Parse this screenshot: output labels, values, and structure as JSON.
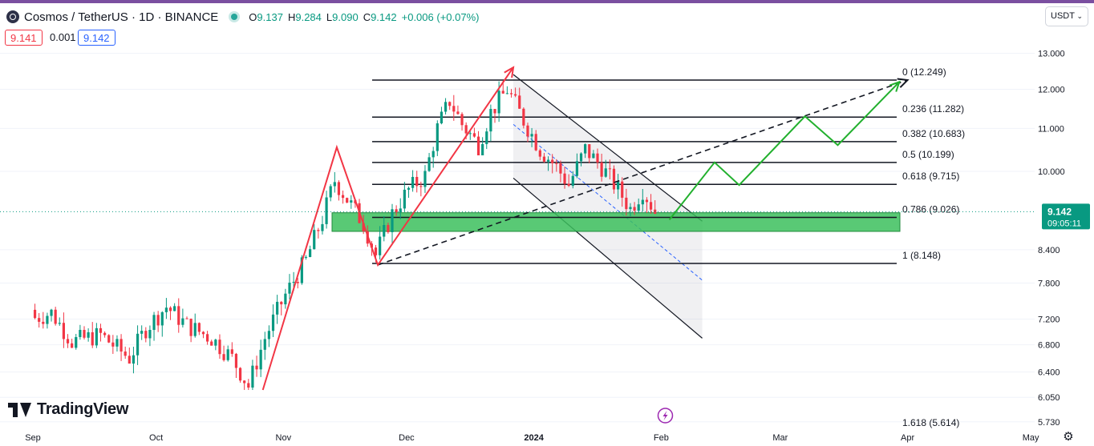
{
  "header": {
    "symbol": "Cosmos / TetherUS · 1D · BINANCE",
    "open_label": "O",
    "open": "9.137",
    "high_label": "H",
    "high": "9.284",
    "low_label": "L",
    "low": "9.090",
    "close_label": "C",
    "close": "9.142",
    "change": "+0.006 (+0.07%)"
  },
  "quote": {
    "bid": "9.141",
    "spread": "0.001",
    "ask": "9.142"
  },
  "currency": "USDT",
  "last_price": {
    "value": "9.142",
    "countdown": "09:05:11"
  },
  "brand": "TradingView",
  "colors": {
    "up": "#089981",
    "down": "#f23645",
    "projection": "#22b02e",
    "zone": "#3cbf5d",
    "accent": "#7b4fa0"
  },
  "icons": {
    "settings": "gear-icon",
    "event": "lightning-icon",
    "dropdown": "chevron-down-icon"
  },
  "chart_data": {
    "type": "candlestick",
    "scale": "log",
    "x_axis": {
      "ticks": [
        "Sep",
        "Oct",
        "Nov",
        "Dec",
        "2024",
        "Feb",
        "Mar",
        "Apr",
        "May"
      ]
    },
    "y_axis": {
      "ticks": [
        "13.000",
        "12.000",
        "11.000",
        "10.000",
        "8.400",
        "7.800",
        "7.200",
        "6.800",
        "6.400",
        "6.050",
        "5.730"
      ]
    },
    "fibonacci": [
      {
        "label": "0 (12.249)",
        "value": 12.249
      },
      {
        "label": "0.236 (11.282)",
        "value": 11.282
      },
      {
        "label": "0.382 (10.683)",
        "value": 10.683
      },
      {
        "label": "0.5 (10.199)",
        "value": 10.199
      },
      {
        "label": "0.618 (9.715)",
        "value": 9.715
      },
      {
        "label": "0.786 (9.026)",
        "value": 9.026
      },
      {
        "label": "1 (8.148)",
        "value": 8.148
      },
      {
        "label": "1.618 (5.614)",
        "value": 5.614
      }
    ],
    "support_zone": {
      "from": 8.75,
      "to": 9.12
    },
    "price_path": [
      {
        "date": "2023-09-01",
        "open": 7.35,
        "high": 7.45,
        "low": 7.1,
        "close": 7.2
      },
      {
        "date": "2023-09-06",
        "open": 7.2,
        "high": 7.4,
        "low": 7.05,
        "close": 7.3
      },
      {
        "date": "2023-09-11",
        "open": 7.3,
        "high": 7.35,
        "low": 6.75,
        "close": 6.85
      },
      {
        "date": "2023-09-18",
        "open": 6.85,
        "high": 7.05,
        "low": 6.7,
        "close": 6.95
      },
      {
        "date": "2023-09-25",
        "open": 6.95,
        "high": 7.05,
        "low": 6.55,
        "close": 6.6
      },
      {
        "date": "2023-09-29",
        "open": 6.6,
        "high": 7.1,
        "low": 6.35,
        "close": 7.05
      },
      {
        "date": "2023-10-04",
        "open": 7.05,
        "high": 7.55,
        "low": 6.95,
        "close": 7.4
      },
      {
        "date": "2023-10-09",
        "open": 7.4,
        "high": 7.45,
        "low": 7.0,
        "close": 7.1
      },
      {
        "date": "2023-10-15",
        "open": 7.1,
        "high": 7.2,
        "low": 6.8,
        "close": 6.9
      },
      {
        "date": "2023-10-20",
        "open": 6.9,
        "high": 7.0,
        "low": 6.55,
        "close": 6.6
      },
      {
        "date": "2023-10-24",
        "open": 6.6,
        "high": 6.7,
        "low": 6.15,
        "close": 6.2
      },
      {
        "date": "2023-10-28",
        "open": 6.2,
        "high": 7.0,
        "low": 6.15,
        "close": 6.9
      },
      {
        "date": "2023-11-02",
        "open": 6.9,
        "high": 7.7,
        "low": 6.85,
        "close": 7.6
      },
      {
        "date": "2023-11-07",
        "open": 7.6,
        "high": 8.3,
        "low": 7.5,
        "close": 8.2
      },
      {
        "date": "2023-11-11",
        "open": 8.2,
        "high": 9.2,
        "low": 8.1,
        "close": 9.0
      },
      {
        "date": "2023-11-14",
        "open": 9.0,
        "high": 10.0,
        "low": 8.9,
        "close": 9.8
      },
      {
        "date": "2023-11-17",
        "open": 9.8,
        "high": 9.9,
        "low": 9.3,
        "close": 9.4
      },
      {
        "date": "2023-11-21",
        "open": 9.4,
        "high": 9.6,
        "low": 8.7,
        "close": 8.9
      },
      {
        "date": "2023-11-24",
        "open": 8.9,
        "high": 9.0,
        "low": 8.15,
        "close": 8.3
      },
      {
        "date": "2023-11-28",
        "open": 8.3,
        "high": 9.3,
        "low": 8.2,
        "close": 9.1
      },
      {
        "date": "2023-12-02",
        "open": 9.1,
        "high": 10.0,
        "low": 9.0,
        "close": 9.6
      },
      {
        "date": "2023-12-06",
        "open": 9.6,
        "high": 10.3,
        "low": 9.2,
        "close": 9.9
      },
      {
        "date": "2023-12-09",
        "open": 9.9,
        "high": 11.2,
        "low": 9.8,
        "close": 11.0
      },
      {
        "date": "2023-12-12",
        "open": 11.0,
        "high": 12.4,
        "low": 10.8,
        "close": 11.7
      },
      {
        "date": "2023-12-15",
        "open": 11.7,
        "high": 12.1,
        "low": 10.9,
        "close": 11.1
      },
      {
        "date": "2023-12-19",
        "open": 11.1,
        "high": 11.3,
        "low": 10.4,
        "close": 10.6
      },
      {
        "date": "2023-12-22",
        "open": 10.6,
        "high": 11.6,
        "low": 10.5,
        "close": 11.4
      },
      {
        "date": "2023-12-26",
        "open": 11.4,
        "high": 12.4,
        "low": 11.2,
        "close": 12.0
      },
      {
        "date": "2023-12-30",
        "open": 12.0,
        "high": 12.2,
        "low": 11.0,
        "close": 11.2
      },
      {
        "date": "2024-01-03",
        "open": 11.2,
        "high": 11.3,
        "low": 10.2,
        "close": 10.5
      },
      {
        "date": "2024-01-07",
        "open": 10.5,
        "high": 10.8,
        "low": 9.9,
        "close": 10.1
      },
      {
        "date": "2024-01-10",
        "open": 10.1,
        "high": 10.4,
        "low": 9.4,
        "close": 9.7
      },
      {
        "date": "2024-01-14",
        "open": 9.7,
        "high": 10.9,
        "low": 9.6,
        "close": 10.5
      },
      {
        "date": "2024-01-18",
        "open": 10.5,
        "high": 10.7,
        "low": 9.9,
        "close": 10.1
      },
      {
        "date": "2024-01-22",
        "open": 10.1,
        "high": 10.2,
        "low": 9.4,
        "close": 9.6
      },
      {
        "date": "2024-01-25",
        "open": 9.6,
        "high": 9.7,
        "low": 8.8,
        "close": 9.2
      },
      {
        "date": "2024-01-28",
        "open": 9.2,
        "high": 9.8,
        "low": 9.1,
        "close": 9.6
      },
      {
        "date": "2024-01-31",
        "open": 9.6,
        "high": 9.7,
        "low": 9.1,
        "close": 9.14
      }
    ],
    "annotations": {
      "impulse_up": [
        {
          "date": "2023-10-27",
          "value": 6.15
        },
        {
          "date": "2023-11-14",
          "value": 10.55
        },
        {
          "date": "2023-11-24",
          "value": 8.12
        },
        {
          "date": "2023-12-27",
          "value": 12.6
        }
      ],
      "projection": [
        {
          "date": "2024-02-03",
          "value": 8.98
        },
        {
          "date": "2024-02-14",
          "value": 10.2
        },
        {
          "date": "2024-02-20",
          "value": 9.7
        },
        {
          "date": "2024-03-07",
          "value": 11.3
        },
        {
          "date": "2024-03-15",
          "value": 10.6
        },
        {
          "date": "2024-03-30",
          "value": 12.2
        }
      ],
      "trendline": [
        {
          "date": "2023-11-24",
          "value": 8.12
        },
        {
          "date": "2024-04-01",
          "value": 12.25
        }
      ],
      "channel_upper": [
        {
          "date": "2023-12-27",
          "value": 12.4
        },
        {
          "date": "2024-02-11",
          "value": 8.95
        }
      ],
      "channel_mid": [
        {
          "date": "2023-12-27",
          "value": 11.1
        },
        {
          "date": "2024-02-11",
          "value": 7.85
        }
      ],
      "channel_lower": [
        {
          "date": "2023-12-27",
          "value": 9.85
        },
        {
          "date": "2024-02-11",
          "value": 6.9
        }
      ]
    }
  }
}
